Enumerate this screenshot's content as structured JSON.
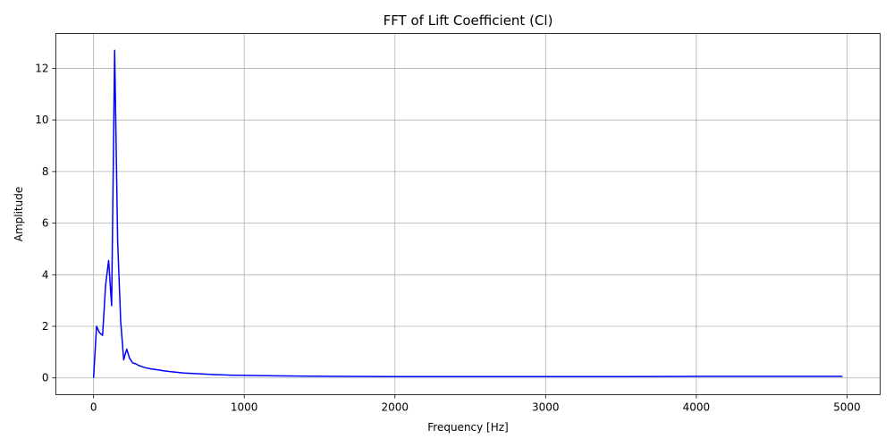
{
  "chart_data": {
    "type": "line",
    "title": "FFT of Lift Coefficient (Cl)",
    "xlabel": "Frequency [Hz]",
    "ylabel": "Amplitude",
    "xlim": [
      -250,
      5220
    ],
    "ylim": [
      -0.65,
      13.35
    ],
    "xticks": [
      0,
      1000,
      2000,
      3000,
      4000,
      5000
    ],
    "yticks": [
      0,
      2,
      4,
      6,
      8,
      10,
      12
    ],
    "grid": true,
    "line_color": "#0000ff",
    "series": [
      {
        "x": [
          0,
          20,
          40,
          60,
          80,
          100,
          120,
          140,
          160,
          180,
          200,
          220,
          240,
          260,
          280,
          300,
          340,
          380,
          420,
          460,
          500,
          550,
          600,
          700,
          800,
          900,
          1000,
          1200,
          1400,
          1600,
          1800,
          2000,
          2500,
          3000,
          3500,
          4000,
          4500,
          4970
        ],
        "y": [
          0.0,
          2.0,
          1.75,
          1.65,
          3.6,
          4.55,
          2.8,
          12.7,
          5.3,
          2.2,
          0.7,
          1.12,
          0.75,
          0.58,
          0.55,
          0.48,
          0.4,
          0.35,
          0.32,
          0.28,
          0.25,
          0.22,
          0.19,
          0.16,
          0.13,
          0.11,
          0.1,
          0.08,
          0.07,
          0.06,
          0.055,
          0.05,
          0.05,
          0.05,
          0.05,
          0.06,
          0.06,
          0.06
        ]
      }
    ]
  }
}
